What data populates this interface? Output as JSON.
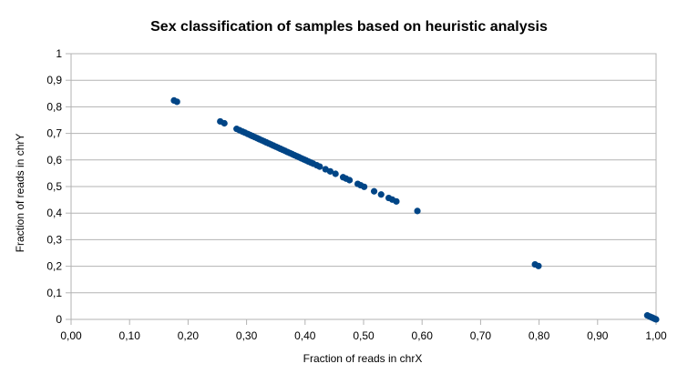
{
  "chart_data": {
    "type": "scatter",
    "title": "Sex classification of samples based on heuristic analysis",
    "xlabel": "Fraction of reads in chrX",
    "ylabel": "Fraction of reads in chrY",
    "xlim": [
      0,
      1
    ],
    "ylim": [
      0,
      1
    ],
    "x_ticks": [
      "0,00",
      "0,10",
      "0,20",
      "0,30",
      "0,40",
      "0,50",
      "0,60",
      "0,70",
      "0,80",
      "0,90",
      "1,00"
    ],
    "y_ticks": [
      "0",
      "0,1",
      "0,2",
      "0,3",
      "0,4",
      "0,5",
      "0,6",
      "0,7",
      "0,8",
      "0,9",
      "1"
    ],
    "grid": true,
    "legend": "none",
    "marker_color": "#004586",
    "series": [
      {
        "points": [
          [
            0.176,
            0.824
          ],
          [
            0.181,
            0.819
          ],
          [
            0.255,
            0.745
          ],
          [
            0.262,
            0.738
          ],
          [
            0.283,
            0.717
          ],
          [
            0.288,
            0.712
          ],
          [
            0.293,
            0.707
          ],
          [
            0.297,
            0.703
          ],
          [
            0.302,
            0.698
          ],
          [
            0.306,
            0.694
          ],
          [
            0.31,
            0.69
          ],
          [
            0.314,
            0.686
          ],
          [
            0.318,
            0.682
          ],
          [
            0.322,
            0.678
          ],
          [
            0.326,
            0.674
          ],
          [
            0.33,
            0.67
          ],
          [
            0.334,
            0.666
          ],
          [
            0.338,
            0.662
          ],
          [
            0.342,
            0.658
          ],
          [
            0.346,
            0.654
          ],
          [
            0.35,
            0.65
          ],
          [
            0.354,
            0.646
          ],
          [
            0.358,
            0.642
          ],
          [
            0.362,
            0.638
          ],
          [
            0.366,
            0.634
          ],
          [
            0.37,
            0.63
          ],
          [
            0.374,
            0.626
          ],
          [
            0.378,
            0.622
          ],
          [
            0.382,
            0.618
          ],
          [
            0.386,
            0.614
          ],
          [
            0.39,
            0.61
          ],
          [
            0.394,
            0.606
          ],
          [
            0.398,
            0.602
          ],
          [
            0.402,
            0.598
          ],
          [
            0.406,
            0.594
          ],
          [
            0.41,
            0.59
          ],
          [
            0.414,
            0.586
          ],
          [
            0.42,
            0.58
          ],
          [
            0.425,
            0.575
          ],
          [
            0.435,
            0.565
          ],
          [
            0.443,
            0.557
          ],
          [
            0.452,
            0.548
          ],
          [
            0.465,
            0.535
          ],
          [
            0.47,
            0.53
          ],
          [
            0.476,
            0.524
          ],
          [
            0.49,
            0.51
          ],
          [
            0.495,
            0.505
          ],
          [
            0.501,
            0.499
          ],
          [
            0.518,
            0.482
          ],
          [
            0.53,
            0.47
          ],
          [
            0.543,
            0.457
          ],
          [
            0.549,
            0.451
          ],
          [
            0.556,
            0.444
          ],
          [
            0.592,
            0.408
          ],
          [
            0.793,
            0.207
          ],
          [
            0.799,
            0.201
          ],
          [
            0.985,
            0.015
          ],
          [
            0.989,
            0.011
          ],
          [
            0.992,
            0.008
          ],
          [
            0.994,
            0.006
          ],
          [
            0.996,
            0.004
          ],
          [
            0.998,
            0.002
          ],
          [
            1.0,
            0.0
          ]
        ]
      }
    ]
  }
}
